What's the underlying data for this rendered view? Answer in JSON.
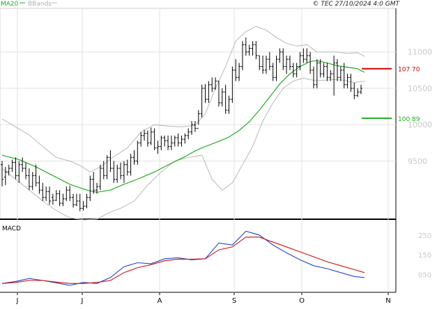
{
  "header": {
    "ma_label": "MA20",
    "bbands_label": "BBands",
    "copyright": "© TEC 27/10/2024 4:0 GMT"
  },
  "macd_pane": {
    "label": "MACD"
  },
  "colors": {
    "ohlc": "#000000",
    "ma20": "#22aa22",
    "bbands": "#b8b8b8",
    "resistance": "#cc0000",
    "support": "#22aa22",
    "macd": "#2244cc",
    "signal": "#cc1111",
    "grid": "#e0e0e0",
    "axis_text": "#c8c8c8"
  },
  "chart_data": [
    {
      "type": "ohlc",
      "ylim": [
        8700,
        11600
      ],
      "grid": true,
      "y_tick_labels": [
        "9500",
        "10000",
        "10500",
        "11000"
      ],
      "y_ticks": [
        9500,
        10000,
        10500,
        11000
      ],
      "x_tick_labels": [
        "J",
        "J",
        "A",
        "S",
        "O",
        "N"
      ],
      "levels": [
        {
          "name": "resistance",
          "value": 10770,
          "label": "107 70",
          "color": "#cc0000"
        },
        {
          "name": "support",
          "value": 10089,
          "label": "100 89",
          "color": "#22aa22"
        }
      ],
      "bars": [
        [
          9450,
          9500,
          9150,
          9250
        ],
        [
          9280,
          9420,
          9170,
          9350
        ],
        [
          9350,
          9450,
          9300,
          9400
        ],
        [
          9400,
          9520,
          9350,
          9480
        ],
        [
          9480,
          9550,
          9250,
          9300
        ],
        [
          9300,
          9500,
          9200,
          9450
        ],
        [
          9450,
          9550,
          9350,
          9400
        ],
        [
          9400,
          9480,
          9250,
          9300
        ],
        [
          9300,
          9400,
          9100,
          9150
        ],
        [
          9150,
          9350,
          9100,
          9300
        ],
        [
          9300,
          9450,
          9150,
          9200
        ],
        [
          9200,
          9300,
          9050,
          9100
        ],
        [
          9100,
          9200,
          8950,
          9000
        ],
        [
          9000,
          9150,
          8950,
          9080
        ],
        [
          9080,
          9150,
          8900,
          8950
        ],
        [
          9000,
          9050,
          8900,
          8960
        ],
        [
          8960,
          9100,
          8950,
          9050
        ],
        [
          9050,
          9100,
          8880,
          8920
        ],
        [
          8920,
          9050,
          8880,
          8980
        ],
        [
          8980,
          9150,
          8950,
          9100
        ],
        [
          9100,
          9160,
          8950,
          9000
        ],
        [
          9000,
          9050,
          8860,
          8900
        ],
        [
          8900,
          9050,
          8880,
          8950
        ],
        [
          8950,
          9050,
          8810,
          8850
        ],
        [
          8850,
          8950,
          8820,
          8880
        ],
        [
          8880,
          9050,
          8850,
          9000
        ],
        [
          9000,
          9300,
          8950,
          9250
        ],
        [
          9250,
          9350,
          9050,
          9100
        ],
        [
          9100,
          9200,
          9050,
          9150
        ],
        [
          9150,
          9450,
          9100,
          9400
        ],
        [
          9400,
          9500,
          9250,
          9300
        ],
        [
          9300,
          9580,
          9250,
          9550
        ],
        [
          9550,
          9650,
          9350,
          9400
        ],
        [
          9400,
          9500,
          9200,
          9250
        ],
        [
          9250,
          9450,
          9200,
          9400
        ],
        [
          9400,
          9480,
          9250,
          9300
        ],
        [
          9300,
          9500,
          9200,
          9450
        ],
        [
          9450,
          9520,
          9300,
          9350
        ],
        [
          9350,
          9600,
          9300,
          9550
        ],
        [
          9550,
          9650,
          9450,
          9500
        ],
        [
          9500,
          9780,
          9450,
          9750
        ],
        [
          9750,
          9900,
          9700,
          9850
        ],
        [
          9850,
          9930,
          9780,
          9880
        ],
        [
          9880,
          9920,
          9700,
          9750
        ],
        [
          9750,
          9960,
          9720,
          9900
        ],
        [
          9900,
          9950,
          9650,
          9680
        ],
        [
          9680,
          9780,
          9600,
          9700
        ],
        [
          9700,
          9850,
          9650,
          9820
        ],
        [
          9820,
          9850,
          9700,
          9780
        ],
        [
          9780,
          9850,
          9650,
          9700
        ],
        [
          9700,
          9850,
          9650,
          9750
        ],
        [
          9750,
          9850,
          9700,
          9820
        ],
        [
          9820,
          9880,
          9700,
          9750
        ],
        [
          9750,
          9850,
          9700,
          9800
        ],
        [
          9800,
          9880,
          9740,
          9850
        ],
        [
          9850,
          9950,
          9800,
          9900
        ],
        [
          9900,
          10050,
          9860,
          10000
        ],
        [
          10000,
          10050,
          9900,
          9950
        ],
        [
          9950,
          10200,
          10000,
          10150
        ],
        [
          10150,
          10550,
          10100,
          10500
        ],
        [
          10500,
          10560,
          10300,
          10350
        ],
        [
          10350,
          10600,
          10300,
          10550
        ],
        [
          10550,
          10650,
          10450,
          10500
        ],
        [
          10500,
          10650,
          10480,
          10600
        ],
        [
          10600,
          10600,
          10250,
          10300
        ],
        [
          10300,
          10500,
          10250,
          10450
        ],
        [
          10450,
          10550,
          10150,
          10200
        ],
        [
          10200,
          10400,
          10150,
          10350
        ],
        [
          10350,
          10800,
          10300,
          10750
        ],
        [
          10750,
          10900,
          10600,
          10650
        ],
        [
          10650,
          10850,
          10600,
          10800
        ],
        [
          10800,
          11150,
          10750,
          11100
        ],
        [
          11100,
          11200,
          10950,
          11000
        ],
        [
          11000,
          11100,
          10950,
          11050
        ],
        [
          11050,
          11150,
          10950,
          11100
        ],
        [
          11100,
          11150,
          10900,
          10950
        ],
        [
          10950,
          10950,
          10750,
          10800
        ],
        [
          10800,
          10950,
          10700,
          10750
        ],
        [
          10750,
          10950,
          10700,
          10900
        ],
        [
          10900,
          11000,
          10750,
          10800
        ],
        [
          10800,
          10850,
          10600,
          10650
        ],
        [
          10650,
          10950,
          10600,
          10900
        ],
        [
          10900,
          11050,
          10850,
          11000
        ],
        [
          11000,
          11050,
          10750,
          10800
        ],
        [
          10800,
          10950,
          10700,
          10900
        ],
        [
          10900,
          10950,
          10750,
          10800
        ],
        [
          10800,
          10850,
          10650,
          10700
        ],
        [
          10700,
          10850,
          10650,
          10800
        ],
        [
          10800,
          11000,
          10750,
          10950
        ],
        [
          10950,
          11050,
          10850,
          10900
        ],
        [
          10900,
          11050,
          10850,
          10950
        ],
        [
          10950,
          11000,
          10700,
          10750
        ],
        [
          10750,
          10800,
          10500,
          10550
        ],
        [
          10550,
          10900,
          10500,
          10850
        ],
        [
          10850,
          10900,
          10650,
          10700
        ],
        [
          10700,
          10850,
          10650,
          10800
        ],
        [
          10800,
          10850,
          10600,
          10650
        ],
        [
          10650,
          10750,
          10600,
          10700
        ],
        [
          10700,
          10950,
          10400,
          10850
        ],
        [
          10850,
          10900,
          10600,
          10650
        ],
        [
          10650,
          10800,
          10600,
          10750
        ],
        [
          10750,
          10850,
          10500,
          10550
        ],
        [
          10550,
          10700,
          10500,
          10650
        ],
        [
          10650,
          10700,
          10450,
          10500
        ],
        [
          10500,
          10580,
          10350,
          10400
        ],
        [
          10400,
          10500,
          10380,
          10450
        ],
        [
          10450,
          10550,
          10420,
          10500
        ]
      ],
      "ma20": [
        [
          0,
          9580
        ],
        [
          5,
          9520
        ],
        [
          10,
          9420
        ],
        [
          15,
          9300
        ],
        [
          20,
          9180
        ],
        [
          25,
          9100
        ],
        [
          28,
          9070
        ],
        [
          32,
          9100
        ],
        [
          36,
          9180
        ],
        [
          40,
          9250
        ],
        [
          45,
          9350
        ],
        [
          50,
          9470
        ],
        [
          54,
          9560
        ],
        [
          57,
          9640
        ],
        [
          60,
          9700
        ],
        [
          64,
          9770
        ],
        [
          67,
          9830
        ],
        [
          70,
          9920
        ],
        [
          73,
          10040
        ],
        [
          76,
          10200
        ],
        [
          79,
          10380
        ],
        [
          82,
          10560
        ],
        [
          85,
          10700
        ],
        [
          88,
          10800
        ],
        [
          91,
          10870
        ],
        [
          93,
          10880
        ],
        [
          96,
          10850
        ],
        [
          99,
          10810
        ],
        [
          102,
          10790
        ],
        [
          105,
          10770
        ],
        [
          107,
          10720
        ]
      ],
      "bb_upper": [
        [
          0,
          10080
        ],
        [
          4,
          9970
        ],
        [
          8,
          9860
        ],
        [
          12,
          9700
        ],
        [
          16,
          9550
        ],
        [
          20,
          9500
        ],
        [
          23,
          9440
        ],
        [
          26,
          9350
        ],
        [
          29,
          9420
        ],
        [
          33,
          9560
        ],
        [
          37,
          9680
        ],
        [
          41,
          9900
        ],
        [
          45,
          10000
        ],
        [
          49,
          9980
        ],
        [
          53,
          9970
        ],
        [
          57,
          9990
        ],
        [
          60,
          10150
        ],
        [
          63,
          10500
        ],
        [
          66,
          10800
        ],
        [
          69,
          11150
        ],
        [
          72,
          11280
        ],
        [
          75,
          11350
        ],
        [
          78,
          11300
        ],
        [
          81,
          11200
        ],
        [
          84,
          11120
        ],
        [
          87,
          11080
        ],
        [
          90,
          11100
        ],
        [
          93,
          11000
        ],
        [
          96,
          11000
        ],
        [
          99,
          11000
        ],
        [
          102,
          10980
        ],
        [
          105,
          10990
        ],
        [
          107,
          10940
        ]
      ],
      "bb_lower": [
        [
          0,
          9400
        ],
        [
          4,
          9250
        ],
        [
          8,
          9100
        ],
        [
          12,
          8950
        ],
        [
          16,
          8820
        ],
        [
          20,
          8720
        ],
        [
          24,
          8690
        ],
        [
          28,
          8700
        ],
        [
          32,
          8800
        ],
        [
          35,
          8850
        ],
        [
          39,
          8950
        ],
        [
          43,
          9170
        ],
        [
          47,
          9350
        ],
        [
          51,
          9500
        ],
        [
          55,
          9550
        ],
        [
          59,
          9580
        ],
        [
          62,
          9250
        ],
        [
          65,
          9100
        ],
        [
          68,
          9200
        ],
        [
          71,
          9450
        ],
        [
          74,
          9700
        ],
        [
          77,
          10050
        ],
        [
          80,
          10300
        ],
        [
          83,
          10500
        ],
        [
          86,
          10600
        ],
        [
          89,
          10640
        ],
        [
          92,
          10610
        ],
        [
          95,
          10610
        ],
        [
          98,
          10620
        ],
        [
          101,
          10610
        ],
        [
          104,
          10580
        ],
        [
          107,
          10600
        ]
      ]
    },
    {
      "type": "line",
      "title": "MACD",
      "ylim": [
        -40,
        320
      ],
      "y_ticks": [
        50,
        150,
        250
      ],
      "y_tick_labels": [
        "050",
        "150",
        "250"
      ],
      "series": [
        {
          "color": "#2244cc",
          "points": [
            [
              0,
              5
            ],
            [
              4,
              15
            ],
            [
              8,
              30
            ],
            [
              12,
              20
            ],
            [
              16,
              8
            ],
            [
              20,
              -5
            ],
            [
              24,
              10
            ],
            [
              28,
              5
            ],
            [
              32,
              35
            ],
            [
              36,
              90
            ],
            [
              40,
              110
            ],
            [
              44,
              105
            ],
            [
              48,
              130
            ],
            [
              52,
              135
            ],
            [
              56,
              125
            ],
            [
              60,
              130
            ],
            [
              64,
              210
            ],
            [
              68,
              200
            ],
            [
              72,
              270
            ],
            [
              76,
              250
            ],
            [
              80,
              200
            ],
            [
              84,
              160
            ],
            [
              88,
              125
            ],
            [
              92,
              95
            ],
            [
              96,
              80
            ],
            [
              100,
              60
            ],
            [
              104,
              40
            ],
            [
              107,
              35
            ]
          ]
        },
        {
          "color": "#cc1111",
          "points": [
            [
              0,
              5
            ],
            [
              4,
              10
            ],
            [
              8,
              20
            ],
            [
              12,
              20
            ],
            [
              16,
              12
            ],
            [
              20,
              5
            ],
            [
              24,
              5
            ],
            [
              28,
              10
            ],
            [
              32,
              20
            ],
            [
              36,
              60
            ],
            [
              40,
              85
            ],
            [
              44,
              100
            ],
            [
              48,
              120
            ],
            [
              52,
              128
            ],
            [
              56,
              128
            ],
            [
              60,
              130
            ],
            [
              64,
              175
            ],
            [
              68,
              190
            ],
            [
              72,
              240
            ],
            [
              76,
              240
            ],
            [
              80,
              215
            ],
            [
              84,
              190
            ],
            [
              88,
              165
            ],
            [
              92,
              140
            ],
            [
              96,
              115
            ],
            [
              100,
              95
            ],
            [
              104,
              75
            ],
            [
              107,
              60
            ]
          ]
        }
      ]
    }
  ]
}
